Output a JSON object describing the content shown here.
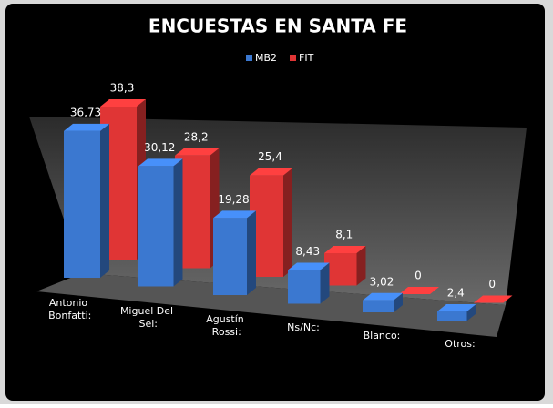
{
  "chart_data": {
    "type": "bar3d",
    "title": "ENCUESTAS EN SANTA FE",
    "categories": [
      "Antonio Bonfatti:",
      "Miguel Del Sel:",
      "Agustín Rossi:",
      "Ns/Nc:",
      "Blanco:",
      "Otros:"
    ],
    "series": [
      {
        "name": "MB2",
        "color": "#3b78d0",
        "values": [
          36.73,
          30.12,
          19.28,
          8.43,
          3.02,
          2.4
        ],
        "value_labels": [
          "36,73",
          "30,12",
          "19,28",
          "8,43",
          "3,02",
          "2,4"
        ]
      },
      {
        "name": "FIT",
        "color": "#e03535",
        "values": [
          38.3,
          28.2,
          25.4,
          8.1,
          0,
          0
        ],
        "value_labels": [
          "38,3",
          "28,2",
          "25,4",
          "8,1",
          "0",
          "0"
        ]
      }
    ],
    "legend": "top"
  }
}
